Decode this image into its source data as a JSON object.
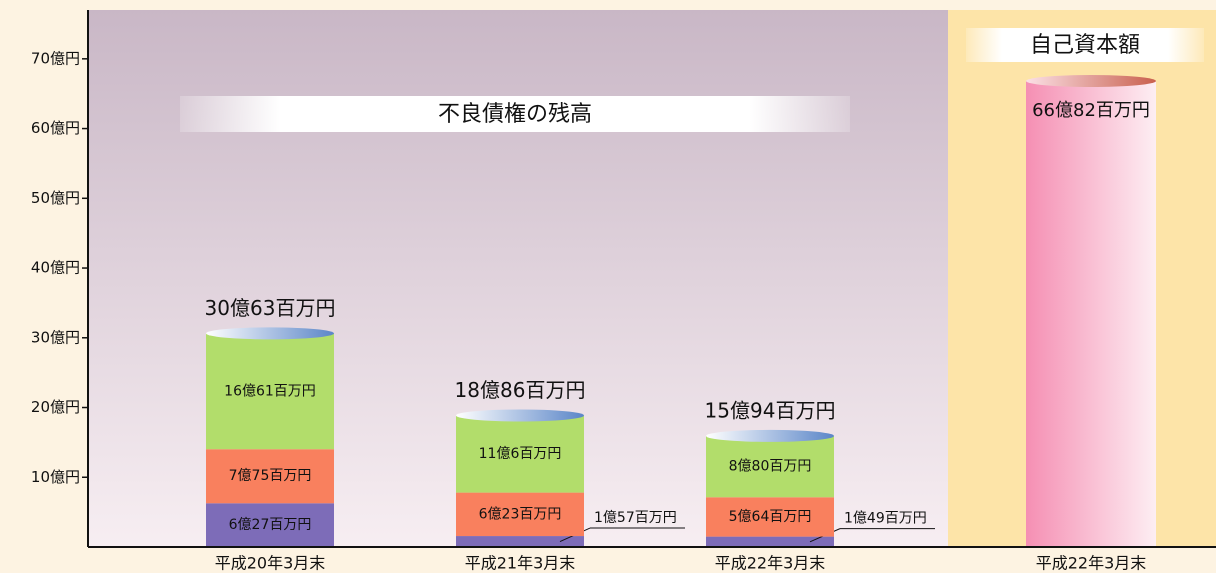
{
  "chart_data": [
    {
      "type": "stacked_bar",
      "title": "不良債権の残高",
      "categories": [
        "平成20年3月末",
        "平成21年3月末",
        "平成22年3月末"
      ],
      "series": [
        {
          "color": "#7d6cb8",
          "values": [
            6.27,
            1.57,
            1.49
          ],
          "value_labels": [
            "6億27百万円",
            "1億57百万円",
            "1億49百万円"
          ]
        },
        {
          "color": "#f9805e",
          "values": [
            7.75,
            6.23,
            5.64
          ],
          "value_labels": [
            "7億75百万円",
            "6億23百万円",
            "5億64百万円"
          ]
        },
        {
          "color": "#b2dd6b",
          "values": [
            16.61,
            11.06,
            8.8
          ],
          "value_labels": [
            "16億61百万円",
            "11億6百万円",
            "8億80百万円"
          ]
        }
      ],
      "total_labels": [
        "30億63百万円",
        "18億86百万円",
        "15億94百万円"
      ],
      "ylim": [
        0,
        77
      ],
      "yticks": [
        {
          "value": 10,
          "label": "10億円"
        },
        {
          "value": 20,
          "label": "20億円"
        },
        {
          "value": 30,
          "label": "30億円"
        },
        {
          "value": 40,
          "label": "40億円"
        },
        {
          "value": 50,
          "label": "50億円"
        },
        {
          "value": 60,
          "label": "60億円"
        },
        {
          "value": 70,
          "label": "70億円"
        }
      ]
    },
    {
      "type": "bar",
      "title": "自己資本額",
      "categories": [
        "平成22年3月末"
      ],
      "values": [
        66.82
      ],
      "value_labels": [
        "66億82百万円"
      ],
      "color": "#f7a0bf"
    }
  ]
}
